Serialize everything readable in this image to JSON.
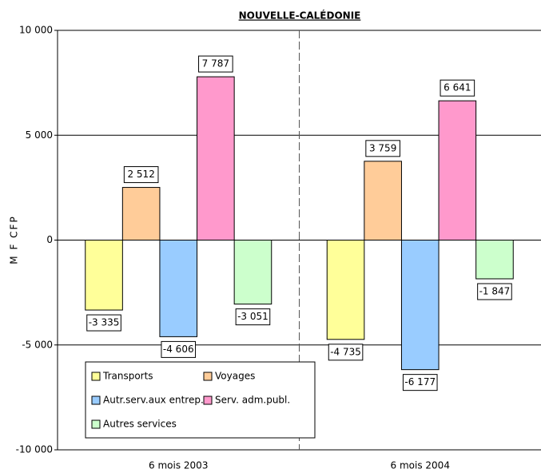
{
  "chart_data": {
    "type": "bar",
    "title": "NOUVELLE-CALÉDONIE",
    "y_label": "M F CFP",
    "categories": [
      "6 mois 2003",
      "6 mois 2004"
    ],
    "series": [
      {
        "name": "Transports",
        "color": "#ffff99",
        "values": [
          -3335,
          -4735
        ],
        "value_labels": [
          "-3 335",
          "-4 735"
        ]
      },
      {
        "name": "Voyages",
        "color": "#ffcc99",
        "values": [
          2512,
          3759
        ],
        "value_labels": [
          "2 512",
          "3 759"
        ]
      },
      {
        "name": "Autr.serv.aux entrep.",
        "color": "#99ccff",
        "values": [
          -4606,
          -6177
        ],
        "value_labels": [
          "-4 606",
          "-6 177"
        ]
      },
      {
        "name": "Serv. adm.publ.",
        "color": "#ff99cc",
        "values": [
          7787,
          6641
        ],
        "value_labels": [
          "7 787",
          "6 641"
        ]
      },
      {
        "name": "Autres services",
        "color": "#ccffcc",
        "values": [
          -3051,
          -1847
        ],
        "value_labels": [
          "-3 051",
          "-1 847"
        ]
      }
    ],
    "ylim": [
      -10000,
      10000
    ],
    "yticks": [
      {
        "value": -10000,
        "label": "-10 000"
      },
      {
        "value": -5000,
        "label": "-5 000"
      },
      0,
      {
        "value": 5000,
        "label": "5 000"
      },
      {
        "value": 10000,
        "label": "10 000"
      }
    ],
    "grid": true,
    "legend": "lower-left"
  }
}
